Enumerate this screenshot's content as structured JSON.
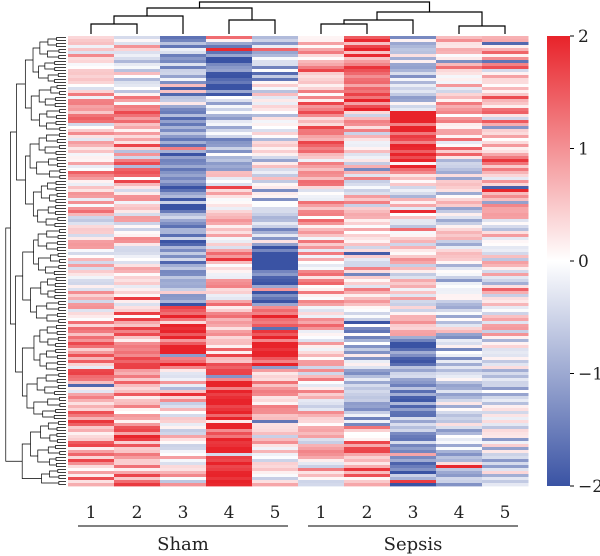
{
  "chart_data": {
    "type": "heatmap",
    "title": "",
    "xlabel": "",
    "ylabel": "",
    "groups": [
      {
        "name": "Sham",
        "samples": [
          "1",
          "2",
          "3",
          "4",
          "5"
        ]
      },
      {
        "name": "Sepsis",
        "samples": [
          "1",
          "2",
          "3",
          "4",
          "5"
        ]
      }
    ],
    "value_range": [
      -2,
      2
    ],
    "colorbar": {
      "ticks": [
        2,
        1,
        0,
        -1,
        -2
      ],
      "tick_labels": [
        "2",
        "1",
        "0",
        "−1",
        "−2"
      ],
      "low_color": "#3a53a4",
      "mid_color": "#ffffff",
      "high_color": "#e8232a"
    },
    "row_dendrogram": true,
    "column_dendrogram": true
  }
}
